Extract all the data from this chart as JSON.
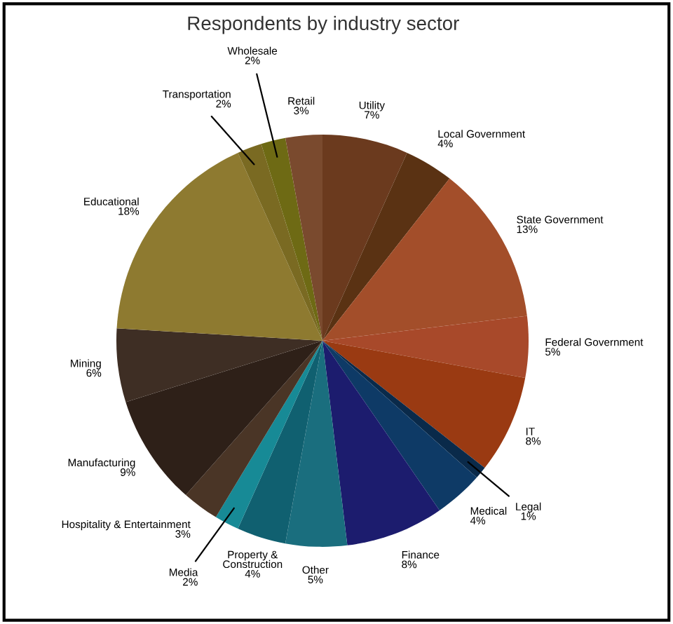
{
  "chart_data": {
    "type": "pie",
    "title": "Respondents by industry sector",
    "categories": [
      "Utility",
      "Local Government",
      "State Government",
      "Federal Government",
      "IT",
      "Legal",
      "Medical",
      "Finance",
      "Other",
      "Property &\nConstruction",
      "Media",
      "Hospitality & Entertainment",
      "Manufacturing",
      "Mining",
      "Educational",
      "Transportation",
      "Wholesale",
      "Retail"
    ],
    "values": [
      7,
      4,
      13,
      5,
      8,
      1,
      4,
      8,
      5,
      4,
      2,
      3,
      9,
      6,
      18,
      2,
      2,
      3
    ],
    "colors": [
      "#6b3a1e",
      "#5a3213",
      "#a34e2a",
      "#a8492a",
      "#9a3a12",
      "#0a2a4a",
      "#0e3a66",
      "#1c1c6e",
      "#1a6e7e",
      "#106070",
      "#178a96",
      "#4a3526",
      "#2e2018",
      "#3e2e24",
      "#8e7a30",
      "#7a6a22",
      "#6e6a14",
      "#7a4a2e"
    ],
    "value_labels": [
      "7%",
      "4%",
      "13%",
      "5%",
      "8%",
      "1%",
      "4%",
      "8%",
      "5%",
      "4%",
      "2%",
      "3%",
      "9%",
      "6%",
      "18%",
      "2%",
      "2%",
      "3%"
    ]
  }
}
